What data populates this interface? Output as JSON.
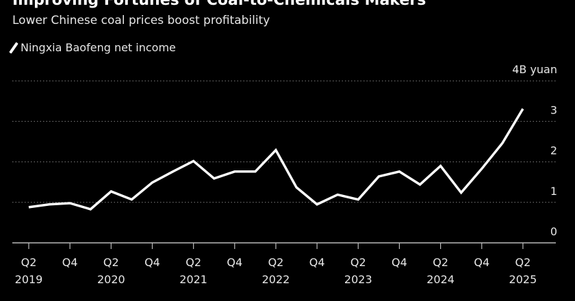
{
  "header": {
    "title": "Improving Fortunes of Coal-to-Chemicals Makers",
    "subtitle": "Lower Chinese coal prices boost profitability"
  },
  "chart_data": {
    "type": "line",
    "title": "Improving Fortunes of Coal-to-Chemicals Makers",
    "subtitle": "Lower Chinese coal prices boost profitability",
    "ylabel": "",
    "y_unit_label": "4B yuan",
    "ylim": [
      0,
      4
    ],
    "yticks": [
      {
        "v": 0,
        "label": "0"
      },
      {
        "v": 1,
        "label": "1"
      },
      {
        "v": 2,
        "label": "2"
      },
      {
        "v": 3,
        "label": "3"
      },
      {
        "v": 4,
        "label": "4B yuan"
      }
    ],
    "grid": true,
    "legend_position": "top-left",
    "colors": {
      "line": "#ffffff",
      "background": "#000000",
      "grid": "#808080"
    },
    "x": [
      "Q2 2019",
      "Q3 2019",
      "Q4 2019",
      "Q1 2020",
      "Q2 2020",
      "Q3 2020",
      "Q4 2020",
      "Q1 2021",
      "Q2 2021",
      "Q3 2021",
      "Q4 2021",
      "Q1 2022",
      "Q2 2022",
      "Q3 2022",
      "Q4 2022",
      "Q1 2023",
      "Q2 2023",
      "Q3 2023",
      "Q4 2023",
      "Q1 2024",
      "Q2 2024",
      "Q3 2024",
      "Q4 2024",
      "Q1 2025",
      "Q2 2025"
    ],
    "xticks": [
      {
        "i": 0,
        "q": "Q2",
        "y": "2019"
      },
      {
        "i": 2,
        "q": "Q4",
        "y": ""
      },
      {
        "i": 4,
        "q": "Q2",
        "y": "2020"
      },
      {
        "i": 6,
        "q": "Q4",
        "y": ""
      },
      {
        "i": 8,
        "q": "Q2",
        "y": "2021"
      },
      {
        "i": 10,
        "q": "Q4",
        "y": ""
      },
      {
        "i": 12,
        "q": "Q2",
        "y": "2022"
      },
      {
        "i": 14,
        "q": "Q4",
        "y": ""
      },
      {
        "i": 16,
        "q": "Q2",
        "y": "2023"
      },
      {
        "i": 18,
        "q": "Q4",
        "y": ""
      },
      {
        "i": 20,
        "q": "Q2",
        "y": "2024"
      },
      {
        "i": 22,
        "q": "Q4",
        "y": ""
      },
      {
        "i": 24,
        "q": "Q2",
        "y": "2025"
      }
    ],
    "series": [
      {
        "name": "Ningxia Baofeng net income",
        "values": [
          0.88,
          0.95,
          0.98,
          0.83,
          1.27,
          1.07,
          1.49,
          1.76,
          2.02,
          1.59,
          1.76,
          1.76,
          2.29,
          1.37,
          0.95,
          1.19,
          1.07,
          1.64,
          1.76,
          1.44,
          1.9,
          1.24,
          1.83,
          2.46,
          3.31
        ]
      }
    ]
  }
}
